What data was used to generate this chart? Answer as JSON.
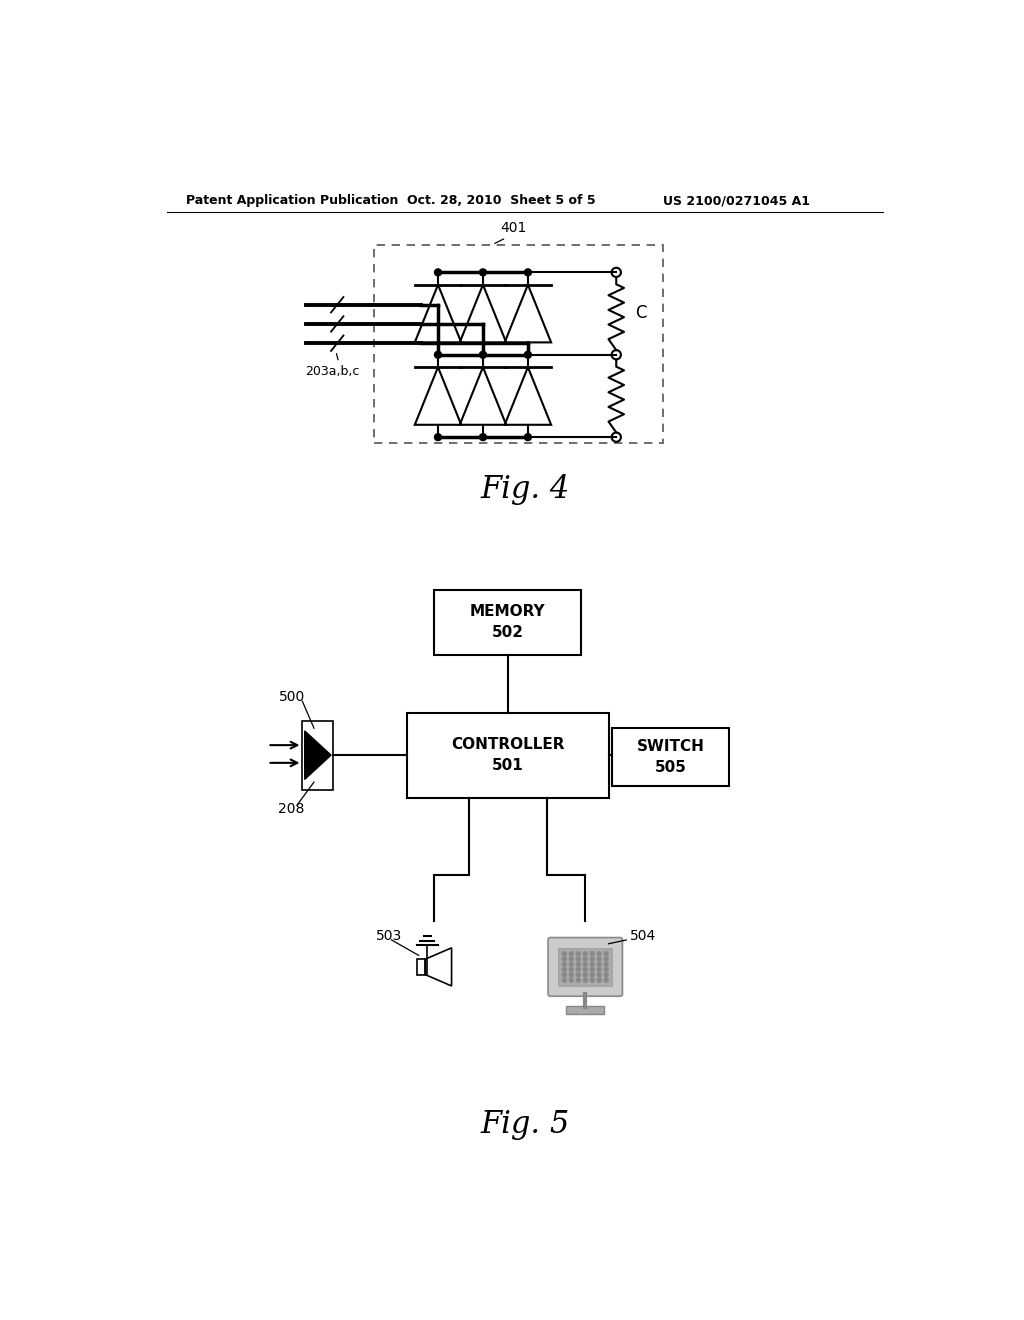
{
  "bg_color": "#ffffff",
  "header_left": "Patent Application Publication",
  "header_center": "Oct. 28, 2010  Sheet 5 of 5",
  "header_right": "US 2100/0271045 A1",
  "fig4_label": "Fig. 4",
  "fig5_label": "Fig. 5",
  "label_401": "401",
  "label_203abc": "203a,b,c",
  "label_C": "C",
  "label_500": "500",
  "label_208": "208",
  "label_503": "503",
  "label_504": "504",
  "label_memory": "MEMORY\n502",
  "label_controller": "CONTROLLER\n501",
  "label_switch": "SWITCH\n505"
}
